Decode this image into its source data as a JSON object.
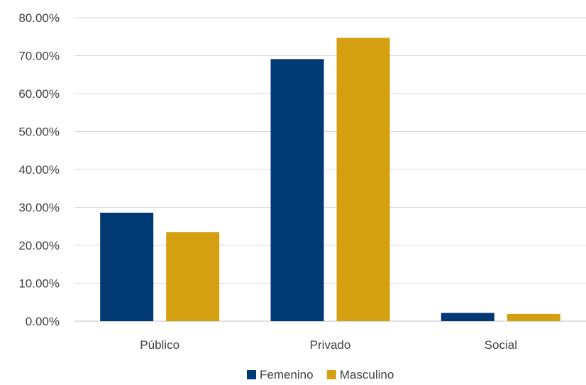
{
  "chart_data": {
    "type": "bar",
    "title": "",
    "xlabel": "",
    "ylabel": "",
    "categories": [
      "Público",
      "Privado",
      "Social"
    ],
    "series": [
      {
        "name": "Femenino",
        "color": "#003A75",
        "values": [
          28.6,
          69.1,
          2.2
        ]
      },
      {
        "name": "Masculino",
        "color": "#D4A012",
        "values": [
          23.5,
          74.7,
          1.9
        ]
      }
    ],
    "ylim": [
      0,
      80
    ],
    "yticks": [
      0,
      10,
      20,
      30,
      40,
      50,
      60,
      70,
      80
    ],
    "ytick_labels": [
      "0.00%",
      "10.00%",
      "20.00%",
      "30.00%",
      "40.00%",
      "50.00%",
      "60.00%",
      "70.00%",
      "80.00%"
    ],
    "grid": true,
    "legend_position": "bottom"
  }
}
